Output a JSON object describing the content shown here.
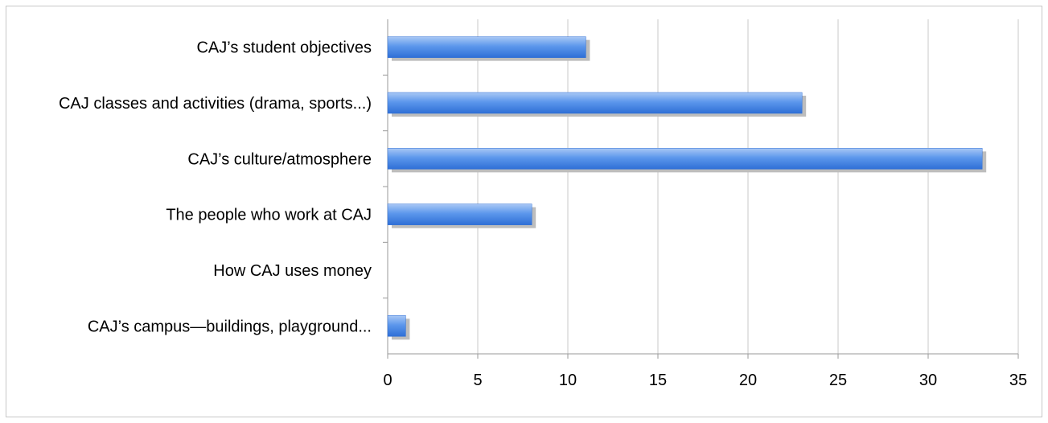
{
  "chart_data": {
    "type": "bar",
    "orientation": "horizontal",
    "title": "",
    "xlabel": "",
    "ylabel": "",
    "categories": [
      "CAJ’s student objectives",
      "CAJ classes and activities (drama, sports...)",
      "CAJ’s culture/atmosphere",
      "The people who work at CAJ",
      "How CAJ uses money",
      "CAJ’s campus—buildings, playground..."
    ],
    "values": [
      11,
      23,
      33,
      8,
      0,
      1
    ],
    "xlim": [
      0,
      35
    ],
    "xticks": [
      "0",
      "5",
      "10",
      "15",
      "20",
      "25",
      "30",
      "35"
    ],
    "grid": "vertical",
    "legend": "none",
    "colors": {
      "bar_top": "#a9c8f5",
      "bar_mid": "#5c97ec",
      "bar_bottom": "#2f6fd6",
      "bar_shadow": "#bdbdbd",
      "grid": "#c8c8c8",
      "axis": "#9a9a9a"
    }
  }
}
